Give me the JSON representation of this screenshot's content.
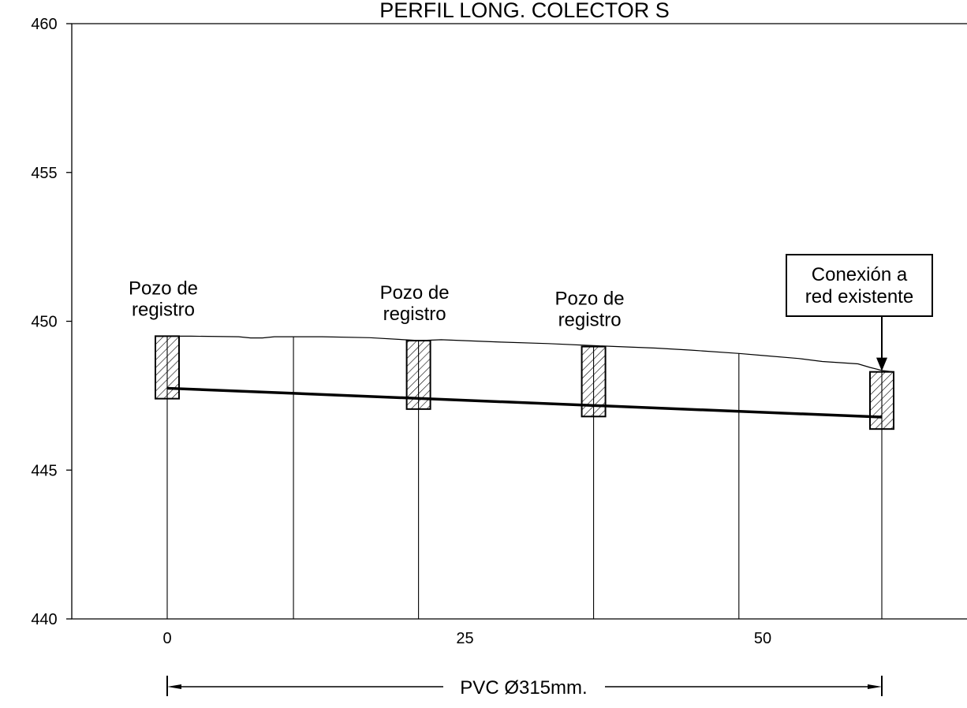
{
  "title": "PERFIL LONG. COLECTOR S",
  "chart_data": {
    "type": "profile",
    "title": "PERFIL LONG. COLECTOR S",
    "x_axis": {
      "ticks": [
        0,
        25,
        50
      ],
      "range": [
        -8,
        68
      ]
    },
    "y_axis": {
      "ticks": [
        440,
        445,
        450,
        455,
        460
      ],
      "range": [
        440,
        460
      ]
    },
    "ground_profile": [
      [
        -1,
        449.5
      ],
      [
        2,
        449.5
      ],
      [
        6,
        449.48
      ],
      [
        7,
        449.44
      ],
      [
        8,
        449.44
      ],
      [
        9,
        449.48
      ],
      [
        13,
        449.48
      ],
      [
        17,
        449.45
      ],
      [
        21.2,
        449.35
      ],
      [
        23,
        449.38
      ],
      [
        28,
        449.3
      ],
      [
        32,
        449.25
      ],
      [
        36,
        449.18
      ],
      [
        41,
        449.1
      ],
      [
        44,
        449.03
      ],
      [
        48,
        448.92
      ],
      [
        50,
        448.85
      ],
      [
        53,
        448.75
      ],
      [
        55,
        448.65
      ],
      [
        58,
        448.57
      ],
      [
        59,
        448.45
      ],
      [
        60,
        448.35
      ],
      [
        61,
        448.3
      ]
    ],
    "pipe": {
      "label": "PVC Ø315mm.",
      "start": [
        0,
        447.75
      ],
      "end": [
        60,
        446.78
      ]
    },
    "vertical_lines_x": [
      0,
      10.6,
      21.1,
      35.8,
      48,
      60
    ],
    "manholes": [
      {
        "x": 0,
        "top": 449.5,
        "bottom": 447.4,
        "label": [
          "Pozo de",
          "registro"
        ]
      },
      {
        "x": 21.1,
        "top": 449.35,
        "bottom": 447.05,
        "label": [
          "Pozo de",
          "registro"
        ]
      },
      {
        "x": 35.8,
        "top": 449.15,
        "bottom": 446.8,
        "label": [
          "Pozo de",
          "registro"
        ]
      },
      {
        "x": 60,
        "top": 448.3,
        "bottom": 446.38,
        "label": [
          "Conexión a",
          "red existente"
        ]
      }
    ],
    "dimension": {
      "from": 0,
      "to": 60,
      "label": "PVC Ø315mm."
    }
  }
}
